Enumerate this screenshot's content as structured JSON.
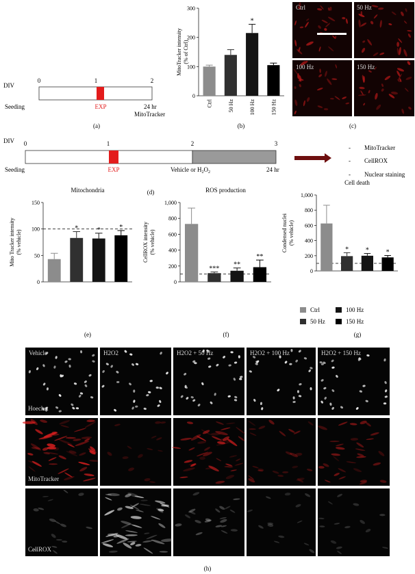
{
  "panel_a": {
    "axis_label": "DIV",
    "ticks": [
      "0",
      "1",
      "2"
    ],
    "label_seeding": "Seeding",
    "label_exp": "EXP",
    "label_end_1": "24 hr",
    "label_end_2": "MitoTracker",
    "letter": "(a)"
  },
  "panel_c": {
    "labels": [
      "Ctrl",
      "50 Hz",
      "100 Hz",
      "150 Hz"
    ],
    "letter": "(c)"
  },
  "panel_d": {
    "axis_label": "DIV",
    "ticks": [
      "0",
      "1",
      "2",
      "3"
    ],
    "label_seeding": "Seeding",
    "label_exp": "EXP",
    "label_vehicle": "Vehicle or H",
    "label_vehicle_sub": "2",
    "label_vehicle_o": "O",
    "label_vehicle_sub2": "2",
    "label_end": "24 hr",
    "readouts": [
      "MitoTracker",
      "CellROX",
      "Nuclear staining"
    ],
    "bullet": "-",
    "letter": "(d)"
  },
  "legend_g": {
    "items": [
      {
        "label": "Ctrl",
        "color": "#8c8c8c"
      },
      {
        "label": "50 Hz",
        "color": "#303030"
      },
      {
        "label": "100 Hz",
        "color": "#141414"
      },
      {
        "label": "150 Hz",
        "color": "#000000"
      }
    ]
  },
  "panel_h": {
    "columns": [
      "Vehicle",
      "H2O2",
      "H2O2 + 50 Hz",
      "H2O2 + 100 Hz",
      "H2O2 + 150 Hz"
    ],
    "rows": [
      {
        "label": "Hoechst",
        "tint": "white"
      },
      {
        "label": "MitoTracker",
        "tint": "red"
      },
      {
        "label": "CellROX",
        "tint": "gray"
      }
    ],
    "letter": "(h)"
  },
  "chart_data": [
    {
      "id": "b",
      "type": "bar",
      "title": "",
      "ylabel": "MitoTracker intensity (% of Ctrl)",
      "categories": [
        "Ctrl",
        "50 Hz",
        "100 Hz",
        "150 Hz"
      ],
      "values": [
        100,
        140,
        215,
        105
      ],
      "errors": [
        5,
        18,
        30,
        7
      ],
      "colors": [
        "#8c8c8c",
        "#303030",
        "#141414",
        "#000000"
      ],
      "significance": [
        "",
        "",
        "*",
        ""
      ],
      "yticks": [
        "0",
        "100",
        "200",
        "300"
      ],
      "ylim": [
        0,
        300
      ],
      "reference_line": null,
      "letter": "(b)"
    },
    {
      "id": "e",
      "type": "bar",
      "title": "Mitochondria",
      "ylabel": "Mito Tracker intensity (% vehicle)",
      "categories": [
        "Ctrl",
        "50 Hz",
        "100 Hz",
        "150 Hz"
      ],
      "values": [
        43,
        83,
        82,
        88
      ],
      "errors": [
        11,
        12,
        10,
        9
      ],
      "colors": [
        "#8c8c8c",
        "#303030",
        "#141414",
        "#000000"
      ],
      "significance": [
        "",
        "*",
        "*",
        "*"
      ],
      "yticks": [
        "0",
        "50",
        "100",
        "150"
      ],
      "ylim": [
        0,
        150
      ],
      "reference_line": 100,
      "letter": "(e)"
    },
    {
      "id": "f",
      "type": "bar",
      "title": "ROS production",
      "ylabel": "CellROX intensity (% vehicle)",
      "categories": [
        "Ctrl",
        "50 Hz",
        "100 Hz",
        "150 Hz"
      ],
      "values": [
        730,
        110,
        140,
        185
      ],
      "errors": [
        200,
        15,
        35,
        90
      ],
      "colors": [
        "#8c8c8c",
        "#303030",
        "#141414",
        "#000000"
      ],
      "significance": [
        "",
        "***",
        "**",
        "**"
      ],
      "yticks": [
        "0",
        "200",
        "400",
        "600",
        "800",
        "1,000"
      ],
      "ylim": [
        0,
        1000
      ],
      "reference_line": 100,
      "letter": "(f)"
    },
    {
      "id": "g",
      "type": "bar",
      "title": "Cell death",
      "ylabel": "Condensed nuclei (% vehicle)",
      "categories": [
        "Ctrl",
        "50 Hz",
        "100 Hz",
        "150 Hz"
      ],
      "values": [
        625,
        195,
        200,
        178
      ],
      "errors": [
        240,
        45,
        30,
        25
      ],
      "colors": [
        "#8c8c8c",
        "#303030",
        "#141414",
        "#000000"
      ],
      "significance": [
        "",
        "*",
        "*",
        "*"
      ],
      "yticks": [
        "0",
        "200",
        "400",
        "600",
        "800",
        "1,000"
      ],
      "ylim": [
        0,
        1000
      ],
      "reference_line": 100,
      "letter": "(g)"
    }
  ]
}
